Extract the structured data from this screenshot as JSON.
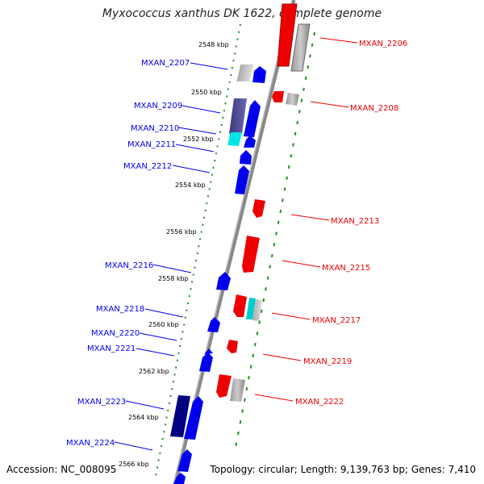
{
  "title": "Myxococcus xanthus DK 1622, complete genome",
  "footer": {
    "accession": "Accession: NC_008095",
    "topology": "Topology: circular; Length: 9,139,763 bp; Genes: 7,410"
  },
  "kbp_labels": [
    "2548 kbp",
    "2550 kbp",
    "2552 kbp",
    "2554 kbp",
    "2556 kbp",
    "2558 kbp",
    "2560 kbp",
    "2562 kbp",
    "2564 kbp",
    "2566 kbp"
  ],
  "genes_left": [
    "MXAN_2207",
    "MXAN_2209",
    "MXAN_2210",
    "MXAN_2211",
    "MXAN_2212",
    "MXAN_2216",
    "MXAN_2218",
    "MXAN_2220",
    "MXAN_2221",
    "MXAN_2223",
    "MXAN_2224"
  ],
  "genes_right": [
    "MXAN_2206",
    "MXAN_2208",
    "MXAN_2213",
    "MXAN_2215",
    "MXAN_2217",
    "MXAN_2219",
    "MXAN_2222"
  ]
}
